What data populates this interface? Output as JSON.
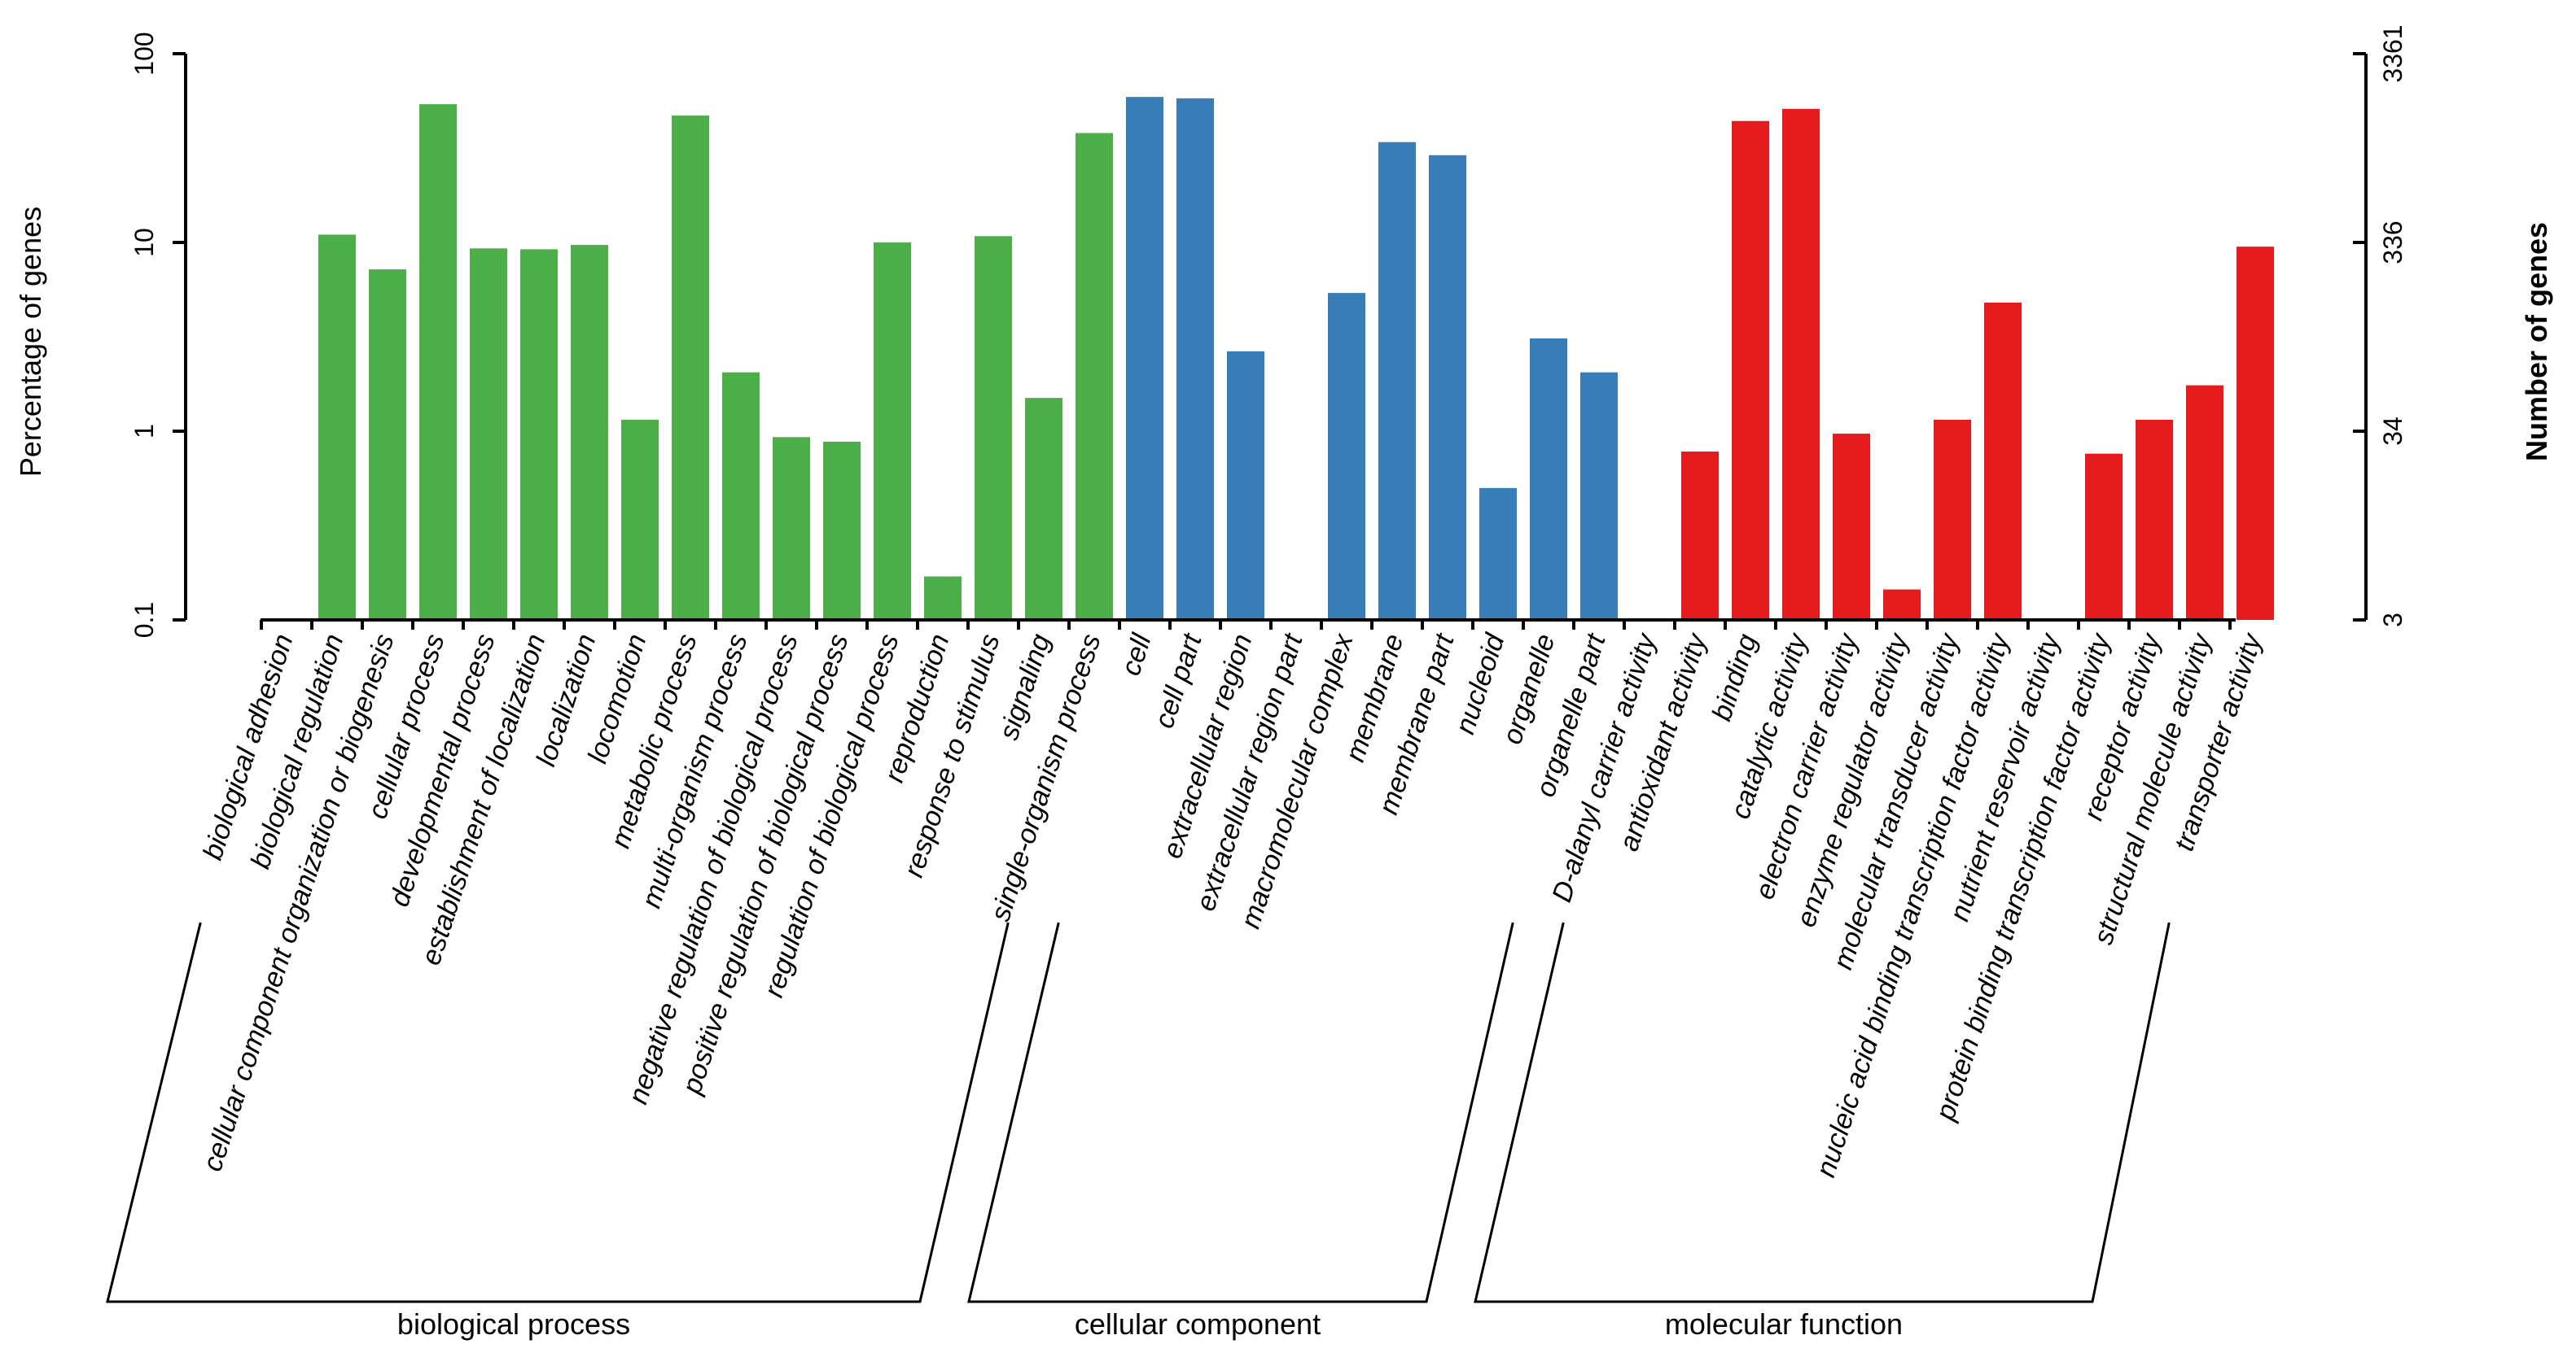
{
  "chart_data": {
    "type": "bar",
    "y_scale": "log",
    "ylabel_left": "Percentage of genes",
    "ylabel_right": "Number of genes",
    "ylim": [
      0.1,
      100
    ],
    "left_ticks": [
      "0.1",
      "1",
      "10",
      "100"
    ],
    "left_tick_values": [
      0.1,
      1,
      10,
      100
    ],
    "right_ticks": [
      "3",
      "34",
      "336",
      "3361"
    ],
    "colors": {
      "biological process": "#4daf4a",
      "cellular component": "#377eb8",
      "molecular function": "#e41a1c"
    },
    "groups": [
      {
        "name": "biological process",
        "categories": [
          {
            "label": "biological adhesion",
            "value": null
          },
          {
            "label": "biological regulation",
            "value": 11.0
          },
          {
            "label": "cellular component organization or biogenesis",
            "value": 7.2
          },
          {
            "label": "cellular process",
            "value": 54.0
          },
          {
            "label": "developmental process",
            "value": 9.3
          },
          {
            "label": "establishment of localization",
            "value": 9.2
          },
          {
            "label": "localization",
            "value": 9.7
          },
          {
            "label": "locomotion",
            "value": 1.15
          },
          {
            "label": "metabolic process",
            "value": 47.0
          },
          {
            "label": "multi-organism process",
            "value": 2.05
          },
          {
            "label": "negative regulation of biological process",
            "value": 0.93
          },
          {
            "label": "positive regulation of biological process",
            "value": 0.88
          },
          {
            "label": "regulation of biological process",
            "value": 10.0
          },
          {
            "label": "reproduction",
            "value": 0.17
          },
          {
            "label": "response to stimulus",
            "value": 10.8
          },
          {
            "label": "signaling",
            "value": 1.5
          },
          {
            "label": "single-organism process",
            "value": 38.0
          }
        ]
      },
      {
        "name": "cellular component",
        "categories": [
          {
            "label": "cell",
            "value": 59.0
          },
          {
            "label": "cell part",
            "value": 58.0
          },
          {
            "label": "extracellular region",
            "value": 2.65
          },
          {
            "label": "extracellular region part",
            "value": null
          },
          {
            "label": "macromolecular complex",
            "value": 5.4
          },
          {
            "label": "membrane",
            "value": 34.0
          },
          {
            "label": "membrane part",
            "value": 29.0
          },
          {
            "label": "nucleoid",
            "value": 0.5
          },
          {
            "label": "organelle",
            "value": 3.1
          },
          {
            "label": "organelle part",
            "value": 2.05
          }
        ]
      },
      {
        "name": "molecular function",
        "categories": [
          {
            "label": "D-alanyl carrier activity",
            "value": null
          },
          {
            "label": "antioxidant activity",
            "value": 0.78
          },
          {
            "label": "binding",
            "value": 44.0
          },
          {
            "label": "catalytic activity",
            "value": 51.0
          },
          {
            "label": "electron carrier activity",
            "value": 0.97
          },
          {
            "label": "enzyme regulator activity",
            "value": 0.145
          },
          {
            "label": "molecular transducer activity",
            "value": 1.15
          },
          {
            "label": "nucleic acid binding transcription factor activity",
            "value": 4.8
          },
          {
            "label": "nutrient reservoir activity",
            "value": null
          },
          {
            "label": "protein binding transcription factor activity",
            "value": 0.76
          },
          {
            "label": "receptor activity",
            "value": 1.15
          },
          {
            "label": "structural molecule activity",
            "value": 1.75
          },
          {
            "label": "transporter activity",
            "value": 9.5
          }
        ]
      }
    ]
  }
}
